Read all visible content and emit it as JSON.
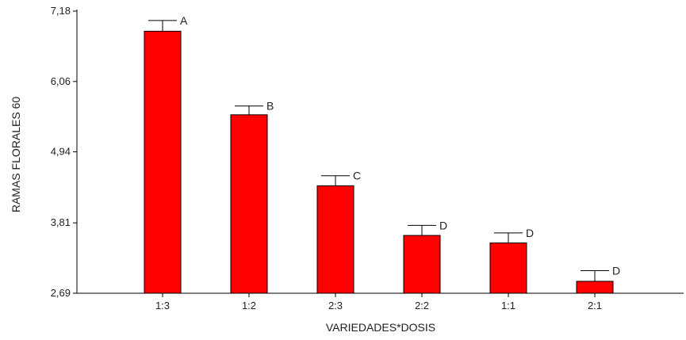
{
  "chart_data": {
    "type": "bar",
    "title": "",
    "xlabel": "VARIEDADES*DOSIS",
    "ylabel": "RAMAS FLORALES 60",
    "ylim": [
      2.69,
      7.18
    ],
    "yticks": [
      "2,69",
      "3,81",
      "4,94",
      "6,06",
      "7,18"
    ],
    "categories": [
      "1:3",
      "1:2",
      "2:3",
      "2:2",
      "1:1",
      "2:1"
    ],
    "values": [
      6.86,
      5.53,
      4.4,
      3.61,
      3.49,
      2.88
    ],
    "error_upper": [
      7.03,
      5.67,
      4.56,
      3.77,
      3.65,
      3.05
    ],
    "letters": [
      "A",
      "B",
      "C",
      "D",
      "D",
      "D"
    ],
    "bar_color": "#ff0000",
    "grid": false
  }
}
